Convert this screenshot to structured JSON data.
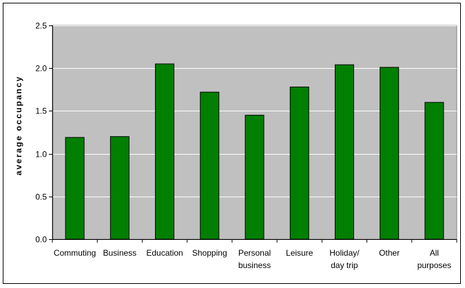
{
  "chart_data": {
    "type": "bar",
    "title": "",
    "xlabel": "",
    "ylabel": "average occupancy",
    "ylim": [
      0,
      2.5
    ],
    "yticks": [
      "0.0",
      "0.5",
      "1.0",
      "1.5",
      "2.0",
      "2.5"
    ],
    "ytick_values": [
      0,
      0.5,
      1.0,
      1.5,
      2.0,
      2.5
    ],
    "grid": true,
    "legend": "none",
    "categories": [
      [
        "Commuting"
      ],
      [
        "Business"
      ],
      [
        "Education"
      ],
      [
        "Shopping"
      ],
      [
        "Personal",
        "business"
      ],
      [
        "Leisure"
      ],
      [
        "Holiday/",
        "day trip"
      ],
      [
        "Other"
      ],
      [
        "All",
        "purposes"
      ]
    ],
    "values": [
      1.19,
      1.2,
      2.05,
      1.72,
      1.45,
      1.78,
      2.04,
      2.01,
      1.6
    ],
    "colors": {
      "bar": "#007f00",
      "bar_border": "#000000",
      "plot_background": "#c0c0c0",
      "gridline": "#ffffff"
    }
  }
}
